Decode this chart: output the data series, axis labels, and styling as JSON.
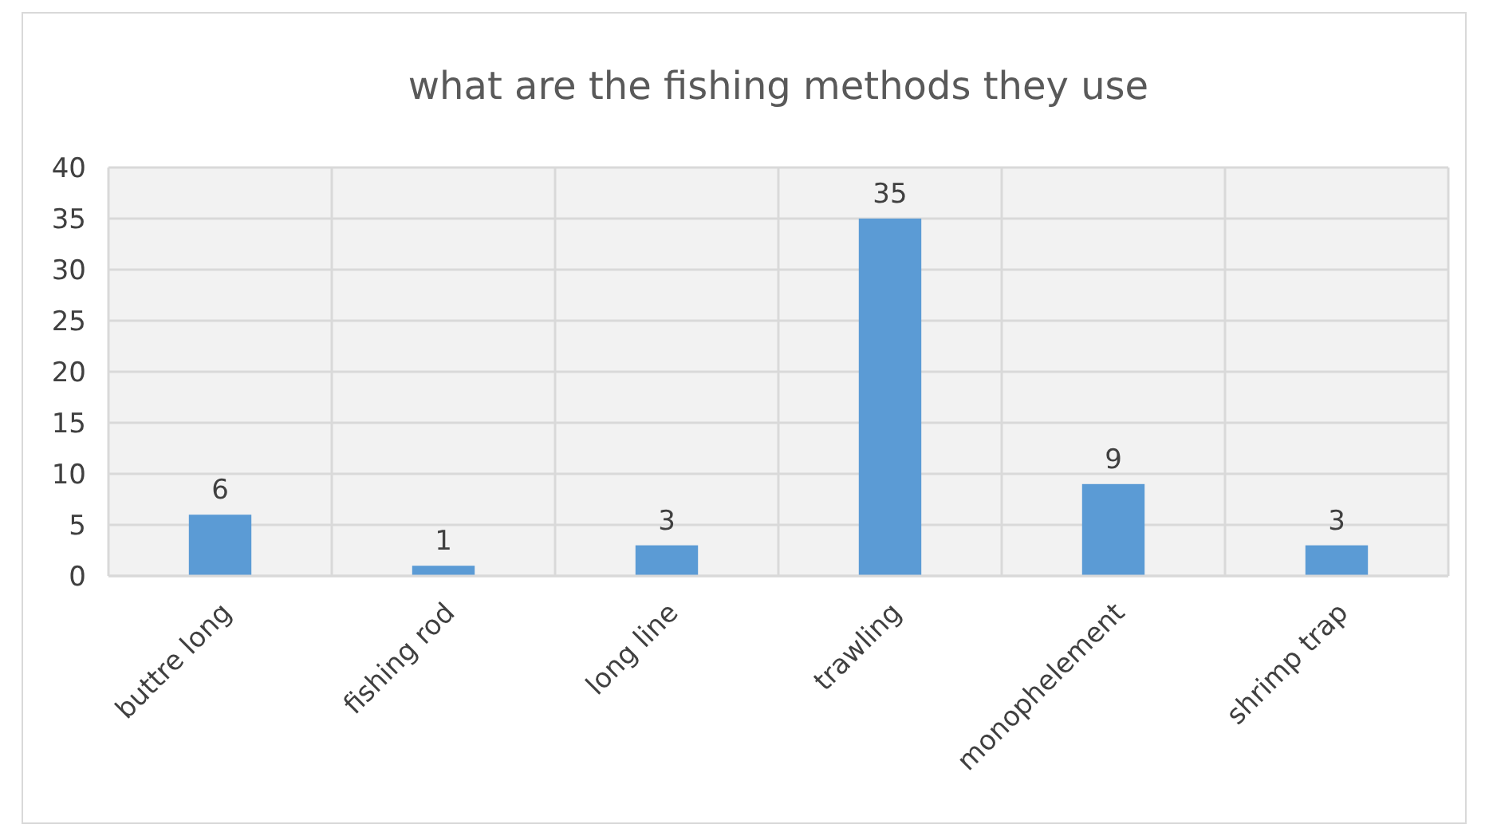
{
  "chart_data": {
    "type": "bar",
    "title": "what are the fishing methods they use",
    "categories": [
      "buttre long",
      "fishing rod",
      "long line",
      "trawling",
      "monophelement",
      "shrimp trap"
    ],
    "values": [
      6,
      1,
      3,
      35,
      9,
      3
    ],
    "color": "#5b9bd5",
    "ylim": [
      0,
      40
    ],
    "yticks": [
      0,
      5,
      10,
      15,
      20,
      25,
      30,
      35,
      40
    ],
    "grid": true,
    "data_labels": true
  }
}
